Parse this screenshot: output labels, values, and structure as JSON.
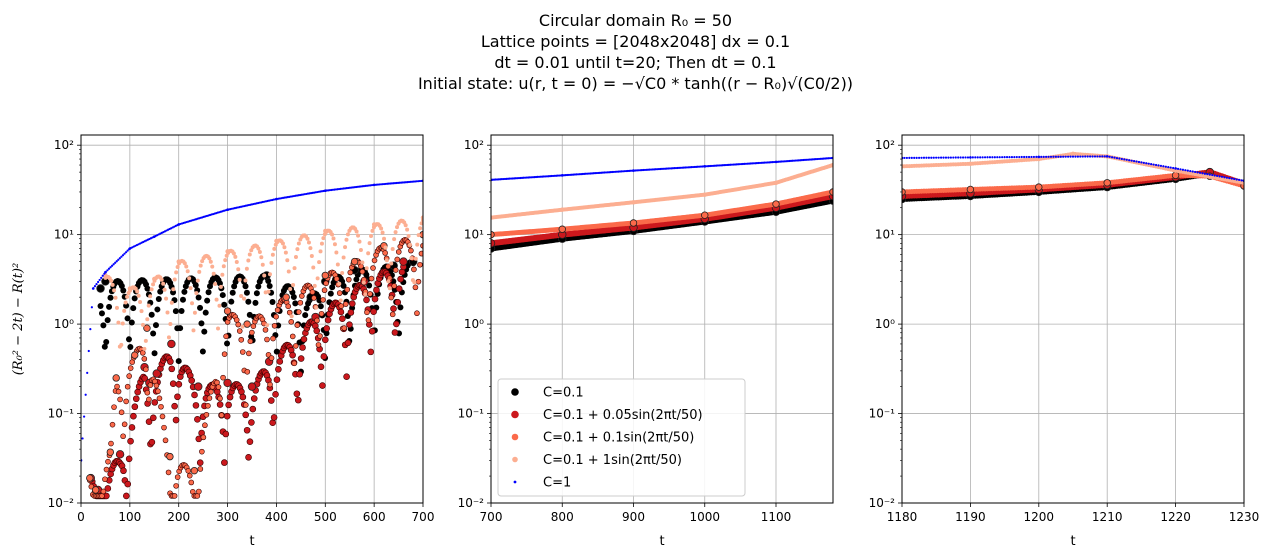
{
  "title": {
    "line1": "Circular domain R₀ = 50",
    "line2": "Lattice points = [2048x2048] dx = 0.1",
    "line3": "dt = 0.01 until t=20; Then dt = 0.1",
    "line4": "Initial state: u(r, t = 0) = −√C0 * tanh((r − R₀)√(C0/2))"
  },
  "chart_data": [
    {
      "type": "scatter",
      "panel": "left",
      "xlabel": "t",
      "ylabel": "(R₀² − 2t) − R(t)²",
      "xlim": [
        0,
        700
      ],
      "ylim": [
        0.01,
        130
      ],
      "yscale": "log",
      "grid": true,
      "xticks": [
        "0",
        "100",
        "200",
        "300",
        "400",
        "500",
        "600",
        "700"
      ],
      "yticks": [
        "10⁻²",
        "10⁻¹",
        "10⁰",
        "10¹",
        "10²"
      ],
      "series": [
        {
          "name": "C=0.1",
          "color": "#000000",
          "x": [
            40,
            50,
            380,
            470,
            500,
            560,
            640,
            680
          ],
          "y": [
            2.5,
            3.0,
            3.5,
            2.0,
            3.0,
            4.0,
            4.5,
            5.0
          ]
        },
        {
          "name": "C=0.1 + 0.05sin(2πt/50)",
          "color": "#cb181d",
          "x": [
            20,
            35,
            80,
            130,
            140,
            155,
            185,
            240,
            300,
            350,
            385,
            480,
            580,
            660
          ],
          "y": [
            0.019,
            0.014,
            0.035,
            0.33,
            0.22,
            0.28,
            0.6,
            0.2,
            0.22,
            0.2,
            0.38,
            1.2,
            3.0,
            5.0
          ]
        },
        {
          "name": "C=0.1 + 0.1sin(2πt/50)",
          "color": "#fb6a4a",
          "x": [
            18,
            30,
            60,
            72,
            110,
            135,
            182,
            232,
            300,
            340,
            420,
            500,
            560,
            620,
            700
          ],
          "y": [
            0.019,
            0.014,
            0.037,
            0.25,
            0.45,
            0.9,
            0.033,
            0.023,
            1.4,
            1.0,
            2.0,
            3.5,
            5.0,
            7.5,
            10.0
          ]
        },
        {
          "name": "C=0.1 + 1sin(2πt/50)",
          "color": "#fcae91",
          "x": [
            50,
            100,
            150,
            200,
            300,
            400,
            500,
            600,
            700
          ],
          "y": [
            3.5,
            2.5,
            3.2,
            5.0,
            6.5,
            8.5,
            11.0,
            13.0,
            15.5
          ]
        },
        {
          "name": "C=1",
          "color": "#0000ff",
          "x": [
            0,
            25,
            50,
            100,
            150,
            200,
            300,
            400,
            500,
            600,
            700
          ],
          "y": [
            0.03,
            2.5,
            3.8,
            7.0,
            9.5,
            13.0,
            19.0,
            25.0,
            31.0,
            36.0,
            40.0
          ]
        }
      ]
    },
    {
      "type": "scatter",
      "panel": "middle",
      "xlabel": "t",
      "ylabel": "",
      "xlim": [
        700,
        1180
      ],
      "ylim": [
        0.01,
        130
      ],
      "yscale": "log",
      "grid": true,
      "legend": "lower-left",
      "xticks": [
        "700",
        "800",
        "900",
        "1000",
        "1100"
      ],
      "yticks": [
        "10⁻²",
        "10⁻¹",
        "10⁰",
        "10¹",
        "10²"
      ],
      "series": [
        {
          "name": "C=0.1",
          "color": "#000000",
          "x": [
            700,
            800,
            900,
            1000,
            1100,
            1180
          ],
          "y": [
            7.0,
            9.0,
            11.0,
            14.0,
            18.0,
            24.0
          ]
        },
        {
          "name": "C=0.1 + 0.05sin(2πt/50)",
          "color": "#cb181d",
          "x": [
            700,
            800,
            900,
            1000,
            1100,
            1180
          ],
          "y": [
            8.0,
            10.0,
            12.0,
            15.0,
            20.0,
            27.0
          ]
        },
        {
          "name": "C=0.1 + 0.1sin(2πt/50)",
          "color": "#fb6a4a",
          "x": [
            700,
            800,
            900,
            1000,
            1100,
            1180
          ],
          "y": [
            10.0,
            11.5,
            13.5,
            16.5,
            22.0,
            30.0
          ]
        },
        {
          "name": "C=0.1 + 1sin(2πt/50)",
          "color": "#fcae91",
          "x": [
            700,
            800,
            900,
            1000,
            1100,
            1180
          ],
          "y": [
            15.5,
            19.0,
            23.0,
            28.0,
            38.0,
            60.0
          ]
        },
        {
          "name": "C=1",
          "color": "#0000ff",
          "x": [
            700,
            800,
            900,
            1000,
            1100,
            1180
          ],
          "y": [
            41.0,
            46.0,
            52.0,
            58.0,
            65.0,
            72.0
          ]
        }
      ]
    },
    {
      "type": "scatter",
      "panel": "right",
      "xlabel": "t",
      "ylabel": "",
      "xlim": [
        1180,
        1230
      ],
      "ylim": [
        0.01,
        130
      ],
      "yscale": "log",
      "grid": true,
      "xticks": [
        "1180",
        "1190",
        "1200",
        "1210",
        "1220",
        "1230"
      ],
      "yticks": [
        "10⁻²",
        "10⁻¹",
        "10⁰",
        "10¹",
        "10²"
      ],
      "series": [
        {
          "name": "C=0.1",
          "color": "#000000",
          "x": [
            1180,
            1190,
            1200,
            1210,
            1220,
            1225,
            1230
          ],
          "y": [
            25.0,
            27.0,
            30.0,
            34.0,
            42.0,
            48.0,
            37.0
          ]
        },
        {
          "name": "C=0.1 + 0.05sin(2πt/50)",
          "color": "#cb181d",
          "x": [
            1180,
            1190,
            1200,
            1210,
            1220,
            1225,
            1230
          ],
          "y": [
            27.0,
            29.0,
            32.0,
            36.0,
            44.0,
            50.0,
            37.0
          ]
        },
        {
          "name": "C=0.1 + 0.1sin(2πt/50)",
          "color": "#fb6a4a",
          "x": [
            1180,
            1190,
            1200,
            1210,
            1220,
            1225,
            1230
          ],
          "y": [
            30.0,
            32.0,
            34.0,
            38.0,
            46.0,
            45.0,
            35.0
          ]
        },
        {
          "name": "C=0.1 + 1sin(2πt/50)",
          "color": "#fcae91",
          "x": [
            1180,
            1190,
            1200,
            1205,
            1210,
            1220,
            1230
          ],
          "y": [
            58.0,
            62.0,
            70.0,
            80.0,
            75.0,
            52.0,
            38.0
          ]
        },
        {
          "name": "C=1",
          "color": "#0000ff",
          "x": [
            1180,
            1190,
            1200,
            1210,
            1220,
            1230
          ],
          "y": [
            72.0,
            73.0,
            74.0,
            75.0,
            55.0,
            40.0
          ]
        }
      ]
    }
  ]
}
